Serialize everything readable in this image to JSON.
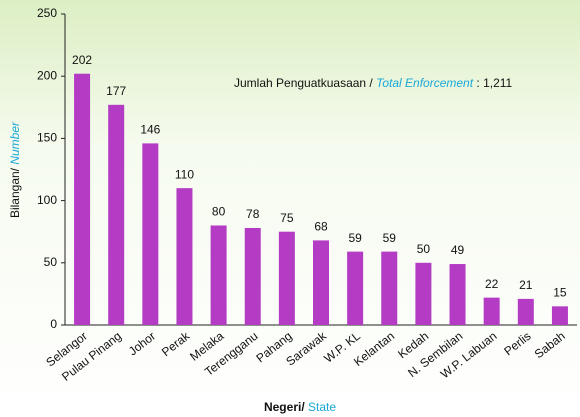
{
  "chart_data": {
    "type": "bar",
    "categories": [
      "Selangor",
      "Pulau Pinang",
      "Johor",
      "Perak",
      "Melaka",
      "Terengganu",
      "Pahang",
      "Sarawak",
      "W.P. KL",
      "Kelantan",
      "Kedah",
      "N. Sembilan",
      "W.P. Labuan",
      "Perlis",
      "Sabah"
    ],
    "values": [
      202,
      177,
      146,
      110,
      80,
      78,
      75,
      68,
      59,
      59,
      50,
      49,
      22,
      21,
      15
    ],
    "color": "#b43cc4",
    "ylim": [
      0,
      250
    ],
    "yticks": [
      0,
      50,
      100,
      150,
      200,
      250
    ],
    "grid": false,
    "ylabel": [
      "Bilangan/",
      "Number"
    ],
    "xlabel": [
      "Negeri/",
      "State"
    ],
    "annotation": [
      "Jumlah Penguatkuasaan /",
      "Total Enforcement",
      ": 1,211"
    ]
  }
}
